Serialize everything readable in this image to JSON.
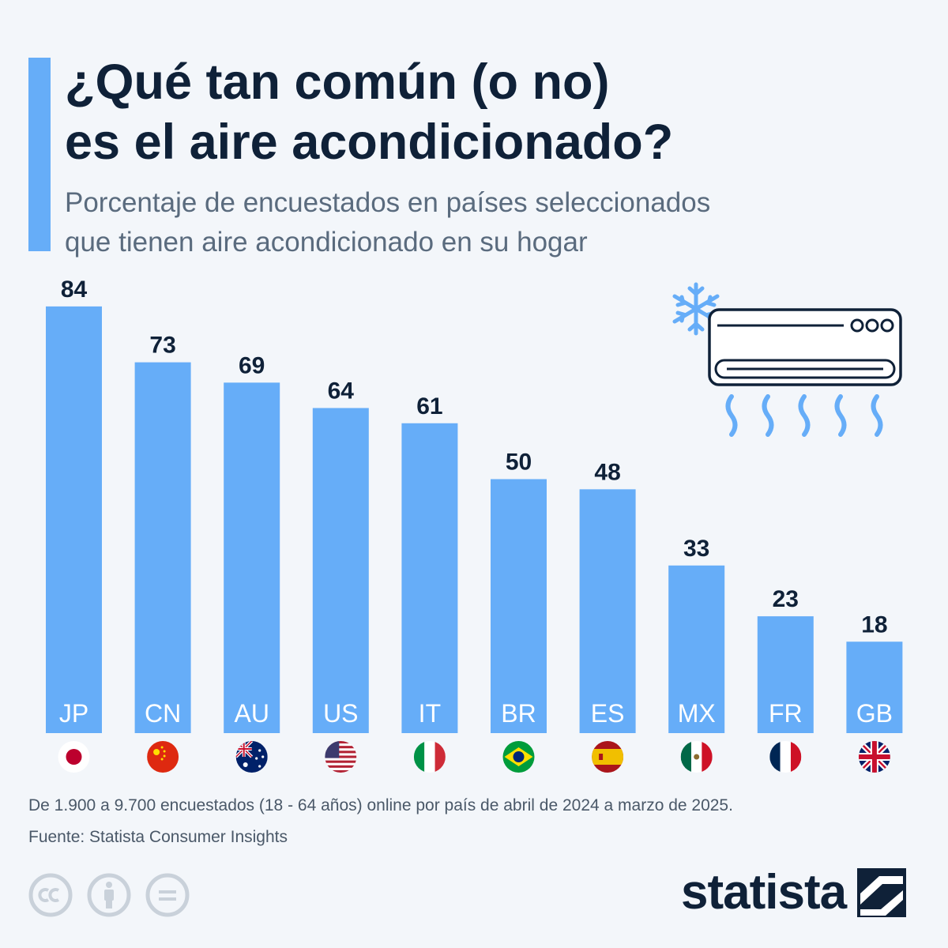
{
  "header": {
    "title_line1": "¿Qué tan común (o no)",
    "title_line2": "es el aire acondicionado?",
    "subtitle_line1": "Porcentaje de encuestados en países seleccionados",
    "subtitle_line2": "que tienen aire acondicionado en su hogar"
  },
  "chart_data": {
    "type": "bar",
    "categories": [
      "JP",
      "CN",
      "AU",
      "US",
      "IT",
      "BR",
      "ES",
      "MX",
      "FR",
      "GB"
    ],
    "values": [
      84,
      73,
      69,
      64,
      61,
      50,
      48,
      33,
      23,
      18
    ],
    "title": "¿Qué tan común (o no) es el aire acondicionado?",
    "subtitle": "Porcentaje de encuestados en países seleccionados que tienen aire acondicionado en su hogar",
    "xlabel": "",
    "ylabel": "",
    "ylim": [
      0,
      100
    ],
    "grid": false,
    "legend": "none",
    "bar_color": "#66adf8"
  },
  "footer": {
    "note": "De 1.900 a 9.700 encuestados (18 - 64 años) online por país de abril de 2024 a marzo de 2025.",
    "source": "Fuente: Statista Consumer Insights"
  },
  "brand": {
    "name": "statista"
  },
  "icons": {
    "license": [
      "cc-icon",
      "attribution-icon",
      "no-derivatives-icon"
    ],
    "illustration": [
      "snowflake-icon",
      "air-conditioner-icon",
      "airflow-icon"
    ]
  },
  "colors": {
    "accent": "#66adf8",
    "title": "#0f2138",
    "subtitle": "#5a6b7e",
    "background": "#f3f6fa"
  }
}
